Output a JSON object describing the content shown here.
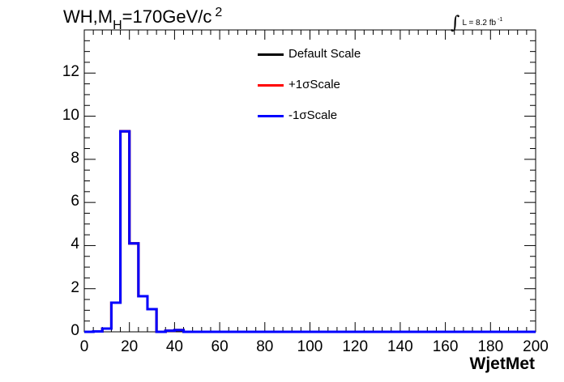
{
  "title": {
    "main": "WH,M",
    "sub": "H",
    "rest": "=170GeV/c",
    "sup": "2"
  },
  "lumi": {
    "integral": "∫",
    "text": "L = 8.2 fb",
    "sup": "-1"
  },
  "legend": [
    {
      "label": "Default Scale",
      "color": "#000000"
    },
    {
      "label": "+1σScale",
      "color": "#ff0000"
    },
    {
      "label": "-1σScale",
      "color": "#0000ff"
    }
  ],
  "chart_data": {
    "type": "line",
    "step": true,
    "title": "WH,MH=170GeV/c2",
    "xlabel": "WjetMet",
    "ylabel": "",
    "xlim": [
      0,
      200
    ],
    "ylim": [
      0,
      14
    ],
    "bin_width": 4,
    "x_ticks": [
      "0",
      "20",
      "40",
      "60",
      "80",
      "100",
      "120",
      "140",
      "160",
      "180",
      "200"
    ],
    "y_ticks": [
      "0",
      "2",
      "4",
      "6",
      "8",
      "10",
      "12"
    ],
    "bin_edges": [
      0,
      4,
      8,
      12,
      16,
      20,
      24,
      28,
      32,
      36,
      40,
      44,
      48,
      200
    ],
    "series": [
      {
        "name": "Default Scale",
        "color": "#000000",
        "values": [
          0,
          0.02,
          0.15,
          1.35,
          9.3,
          4.1,
          1.65,
          1.05,
          0.0,
          0.05,
          0.08,
          0.0,
          0.0
        ]
      },
      {
        "name": "+1σScale",
        "color": "#ff0000",
        "values": [
          0,
          0.02,
          0.15,
          1.35,
          9.3,
          4.1,
          1.65,
          1.05,
          0.0,
          0.05,
          0.08,
          0.0,
          0.0
        ]
      },
      {
        "name": "-1σScale",
        "color": "#0000ff",
        "values": [
          0,
          0.02,
          0.15,
          1.35,
          9.3,
          4.1,
          1.65,
          1.05,
          0.0,
          0.05,
          0.08,
          0.0,
          0.0
        ]
      }
    ]
  }
}
